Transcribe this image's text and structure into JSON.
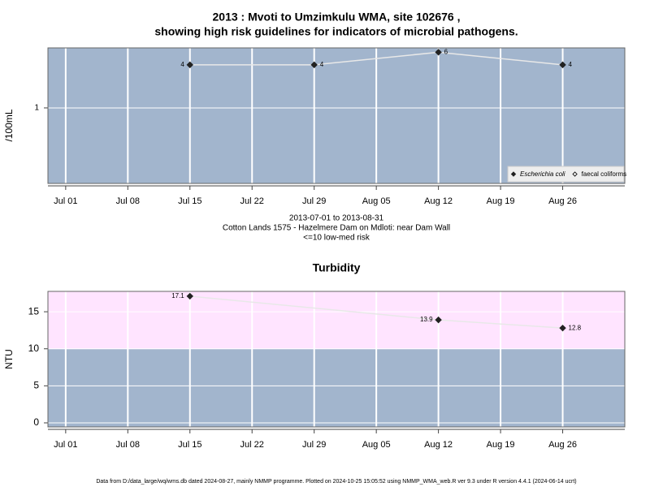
{
  "chart_data": [
    {
      "type": "line",
      "title": [
        "2013 : Mvoti to Umzimkulu WMA, site 102676 ,",
        "showing high risk guidelines for indicators of microbial pathogens."
      ],
      "ylabel": "/100mL",
      "log_y": true,
      "background": "#a2b5cd",
      "grid": true,
      "x": [
        "2013-07-15",
        "2013-07-29",
        "2013-08-12",
        "2013-08-26"
      ],
      "xlim": [
        "2013-06-29",
        "2013-09-02"
      ],
      "xticks": [
        {
          "value": "2013-07-01",
          "label": "Jul 01"
        },
        {
          "value": "2013-07-08",
          "label": "Jul 08"
        },
        {
          "value": "2013-07-15",
          "label": "Jul 15"
        },
        {
          "value": "2013-07-22",
          "label": "Jul 22"
        },
        {
          "value": "2013-07-29",
          "label": "Jul 29"
        },
        {
          "value": "2013-08-05",
          "label": "Aug 05"
        },
        {
          "value": "2013-08-12",
          "label": "Aug 12"
        },
        {
          "value": "2013-08-19",
          "label": "Aug 19"
        },
        {
          "value": "2013-08-26",
          "label": "Aug 26"
        }
      ],
      "ylim": [
        0.088,
        6.9
      ],
      "yticks": [
        1
      ],
      "line_color": "#e8e8e8",
      "series": [
        {
          "name": "Escherichia coli",
          "color": "#222222",
          "marker": "filled",
          "values": [
            4,
            4,
            6,
            4
          ]
        },
        {
          "name": "faecal coliforms",
          "color": "#222222",
          "marker": "open",
          "values": [
            null,
            null,
            null,
            null
          ]
        }
      ],
      "legend": "bottom-right",
      "annotations": [
        "2013-07-01 to 2013-08-31",
        "Cotton Lands 1575 - Hazelmere Dam on Mdloti: near Dam Wall",
        "<=10 low-med risk"
      ]
    },
    {
      "type": "line",
      "title": "Turbidity",
      "ylabel": "NTU",
      "log_y": false,
      "background": "#a2b5cd",
      "bands": [
        {
          "from": 10,
          "color": "#ffe4ff"
        }
      ],
      "grid": true,
      "x": [
        "2013-07-15",
        "2013-08-12",
        "2013-08-26"
      ],
      "xlim": [
        "2013-06-29",
        "2013-09-02"
      ],
      "xticks": [
        {
          "value": "2013-07-01",
          "label": "Jul 01"
        },
        {
          "value": "2013-07-08",
          "label": "Jul 08"
        },
        {
          "value": "2013-07-15",
          "label": "Jul 15"
        },
        {
          "value": "2013-07-22",
          "label": "Jul 22"
        },
        {
          "value": "2013-07-29",
          "label": "Jul 29"
        },
        {
          "value": "2013-08-05",
          "label": "Aug 05"
        },
        {
          "value": "2013-08-12",
          "label": "Aug 12"
        },
        {
          "value": "2013-08-19",
          "label": "Aug 19"
        },
        {
          "value": "2013-08-26",
          "label": "Aug 26"
        }
      ],
      "ylim": [
        -0.55,
        17.75
      ],
      "yticks": [
        0,
        5,
        10,
        15
      ],
      "line_color": "#e8e8e8",
      "series": [
        {
          "name": "Turbidity",
          "color": "#222222",
          "marker": "filled",
          "values": [
            17.1,
            13.9,
            12.8
          ]
        }
      ]
    }
  ],
  "footer": "Data from D:/data_large/wq/wms.db dated 2024-08-27, mainly NMMP programme. Plotted on 2024-10-25 15:05:52 using NMMP_WMA_web.R ver 9.3 under R version 4.4.1 (2024-06-14 ucrt)"
}
